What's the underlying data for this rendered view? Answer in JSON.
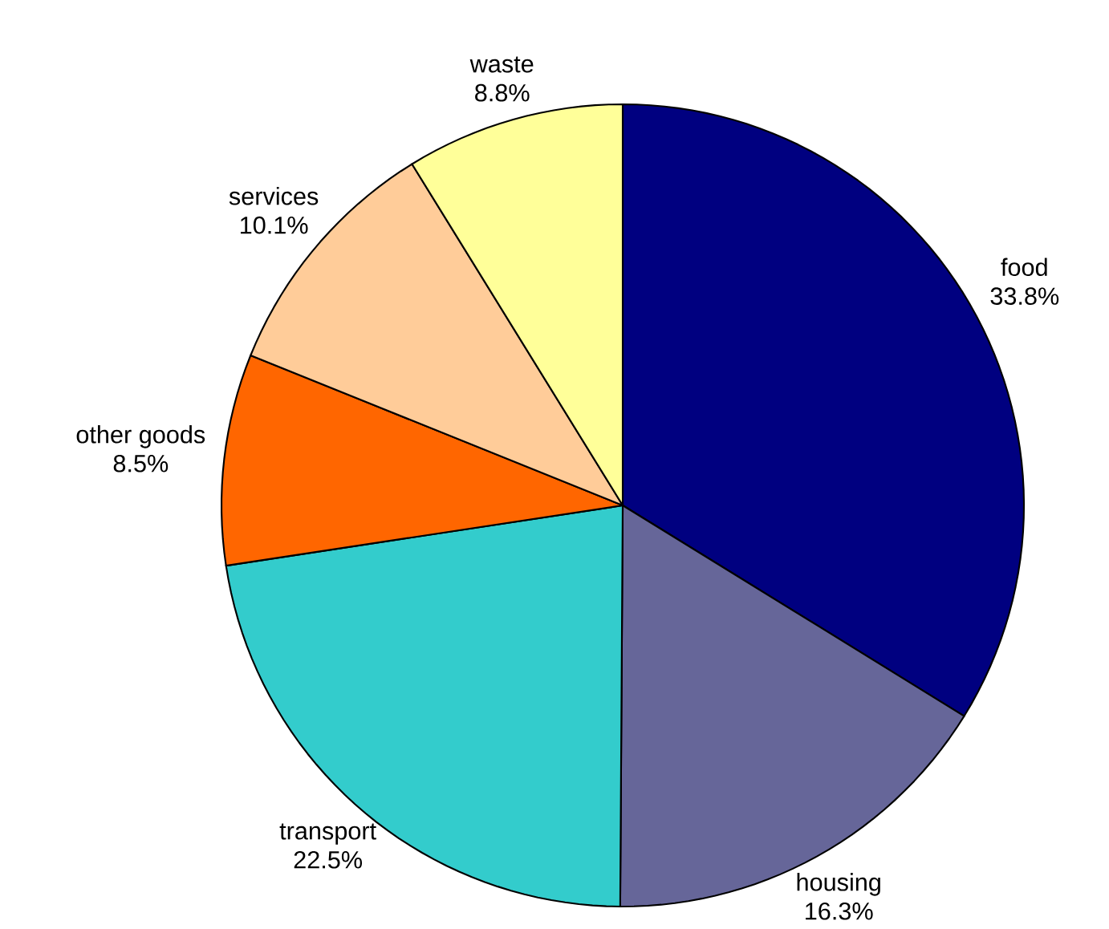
{
  "chart_data": {
    "type": "pie",
    "categories": [
      "food",
      "housing",
      "transport",
      "other goods",
      "services",
      "waste"
    ],
    "values": [
      33.8,
      16.3,
      22.5,
      8.5,
      10.1,
      8.8
    ],
    "colors": [
      "#000080",
      "#666699",
      "#33cccc",
      "#ff6600",
      "#ffcc99",
      "#ffff99"
    ],
    "value_labels": [
      "33.8%",
      "16.3%",
      "22.5%",
      "8.5%",
      "10.1%",
      "8.8%"
    ]
  }
}
